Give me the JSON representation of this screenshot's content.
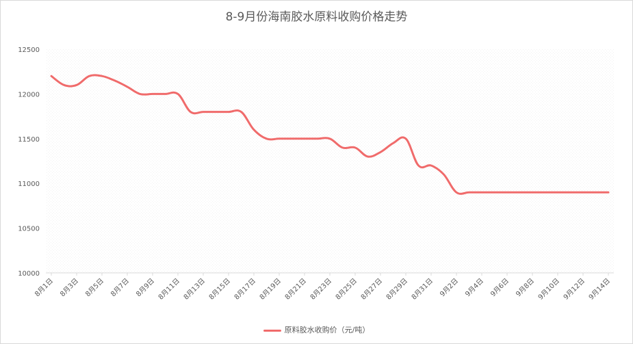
{
  "chart_data": {
    "type": "line",
    "title": "8-9月份海南胶水原料收购价格走势",
    "xlabel": "",
    "ylabel": "",
    "ylim": [
      10000,
      12500
    ],
    "yticks": [
      10000,
      10500,
      11000,
      11500,
      12000,
      12500
    ],
    "grid": false,
    "legend_position": "bottom",
    "categories": [
      "8月1日",
      "8月2日",
      "8月3日",
      "8月4日",
      "8月5日",
      "8月6日",
      "8月7日",
      "8月8日",
      "8月9日",
      "8月10日",
      "8月11日",
      "8月12日",
      "8月13日",
      "8月14日",
      "8月15日",
      "8月16日",
      "8月17日",
      "8月18日",
      "8月19日",
      "8月20日",
      "8月21日",
      "8月22日",
      "8月23日",
      "8月24日",
      "8月25日",
      "8月26日",
      "8月27日",
      "8月28日",
      "8月29日",
      "8月30日",
      "8月31日",
      "9月1日",
      "9月2日",
      "9月3日",
      "9月4日",
      "9月5日",
      "9月6日",
      "9月7日",
      "9月8日",
      "9月9日",
      "9月10日",
      "9月11日",
      "9月12日",
      "9月13日",
      "9月14日"
    ],
    "tick_labels": [
      "8月1日",
      "8月3日",
      "8月5日",
      "8月7日",
      "8月9日",
      "8月11日",
      "8月13日",
      "8月15日",
      "8月17日",
      "8月19日",
      "8月21日",
      "8月23日",
      "8月25日",
      "8月27日",
      "8月29日",
      "8月31日",
      "9月2日",
      "9月4日",
      "9月6日",
      "9月8日",
      "9月10日",
      "9月12日",
      "9月14日"
    ],
    "series": [
      {
        "name": "原料胶水收购价（元/吨）",
        "color": "#f06b6b",
        "values": [
          12200,
          12100,
          12100,
          12200,
          12200,
          12150,
          12080,
          12000,
          12000,
          12000,
          12000,
          11800,
          11800,
          11800,
          11800,
          11800,
          11600,
          11500,
          11500,
          11500,
          11500,
          11500,
          11500,
          11400,
          11400,
          11300,
          11350,
          11450,
          11500,
          11200,
          11200,
          11100,
          10900,
          10900,
          10900,
          10900,
          10900,
          10900,
          10900,
          10900,
          10900,
          10900,
          10900,
          10900,
          10900
        ]
      }
    ]
  }
}
